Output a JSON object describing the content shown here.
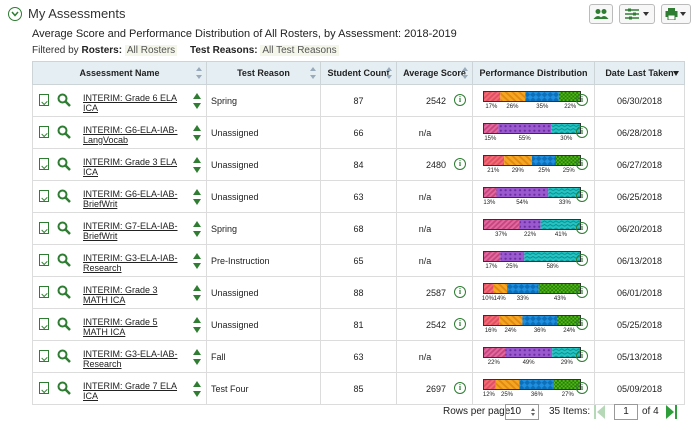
{
  "header": {
    "title": "My Assessments"
  },
  "subtitle": "Average Score and Performance Distribution of All Rosters, by Assessment: 2018-2019",
  "filters": {
    "label": "Filtered by",
    "rosters_label": "Rosters:",
    "rosters_value": "All Rosters",
    "reasons_label": "Test Reasons:",
    "reasons_value": "All Test Reasons"
  },
  "colors": {
    "level1": "#f26d6d",
    "level2": "#f5a623",
    "level3": "#1f8fe0",
    "level4": "#4cbb17",
    "level5": "#9b59d0",
    "level6": "#22c4c4",
    "level7": "#e06aa0",
    "accent": "#2e7d32"
  },
  "table": {
    "columns": [
      "Assessment Name",
      "Test Reason",
      "Student Count",
      "Average Score",
      "Performance Distribution",
      "Date Last Taken"
    ],
    "rows": [
      {
        "name": "INTERIM: Grade 6 ELA ICA",
        "reason": "Spring",
        "count": "87",
        "avg": "2542",
        "date": "06/30/2018",
        "kind": "ica",
        "segments": [
          17,
          26,
          35,
          22
        ],
        "labels": [
          "17%",
          "26%",
          "35%",
          "22%"
        ]
      },
      {
        "name": "INTERIM: G6-ELA-IAB-LangVocab",
        "reason": "Unassigned",
        "count": "66",
        "avg": "n/a",
        "date": "06/28/2018",
        "kind": "iab",
        "segments": [
          15,
          55,
          30
        ],
        "labels": [
          "15%",
          "55%",
          "30%"
        ]
      },
      {
        "name": "INTERIM: Grade 3 ELA ICA",
        "reason": "Unassigned",
        "count": "84",
        "avg": "2480",
        "date": "06/27/2018",
        "kind": "ica",
        "segments": [
          21,
          29,
          25,
          25
        ],
        "labels": [
          "21%",
          "29%",
          "25%",
          "25%"
        ]
      },
      {
        "name": "INTERIM: G6-ELA-IAB-BriefWrit",
        "reason": "Unassigned",
        "count": "63",
        "avg": "n/a",
        "date": "06/25/2018",
        "kind": "iab",
        "segments": [
          13,
          54,
          33
        ],
        "labels": [
          "13%",
          "54%",
          "33%"
        ]
      },
      {
        "name": "INTERIM: G7-ELA-IAB-BriefWrit",
        "reason": "Spring",
        "count": "68",
        "avg": "n/a",
        "date": "06/20/2018",
        "kind": "iab",
        "segments": [
          37,
          22,
          41
        ],
        "labels": [
          "37%",
          "22%",
          "41%"
        ]
      },
      {
        "name": "INTERIM: G3-ELA-IAB-Research",
        "reason": "Pre-Instruction",
        "count": "65",
        "avg": "n/a",
        "date": "06/13/2018",
        "kind": "iab",
        "segments": [
          17,
          25,
          58
        ],
        "labels": [
          "17%",
          "25%",
          "58%"
        ]
      },
      {
        "name": "INTERIM: Grade 3 MATH ICA",
        "reason": "Unassigned",
        "count": "88",
        "avg": "2587",
        "date": "06/01/2018",
        "kind": "ica",
        "segments": [
          10,
          14,
          33,
          43
        ],
        "labels": [
          "10%",
          "14%",
          "33%",
          "43%"
        ]
      },
      {
        "name": "INTERIM: Grade 5 MATH ICA",
        "reason": "Unassigned",
        "count": "81",
        "avg": "2542",
        "date": "05/25/2018",
        "kind": "ica",
        "segments": [
          16,
          24,
          36,
          24
        ],
        "labels": [
          "16%",
          "24%",
          "36%",
          "24%"
        ]
      },
      {
        "name": "INTERIM: G3-ELA-IAB-Research",
        "reason": "Fall",
        "count": "63",
        "avg": "n/a",
        "date": "05/13/2018",
        "kind": "iab",
        "segments": [
          22,
          49,
          29
        ],
        "labels": [
          "22%",
          "49%",
          "29%"
        ]
      },
      {
        "name": "INTERIM: Grade 7 ELA ICA",
        "reason": "Test Four",
        "count": "85",
        "avg": "2697",
        "date": "05/09/2018",
        "kind": "ica",
        "segments": [
          12,
          25,
          36,
          27
        ],
        "labels": [
          "12%",
          "25%",
          "36%",
          "27%"
        ]
      }
    ]
  },
  "footer": {
    "rows_label": "Rows per page:",
    "rows_value": "10",
    "items_label": "35 Items:",
    "page": "1",
    "of_label": "of 4"
  }
}
